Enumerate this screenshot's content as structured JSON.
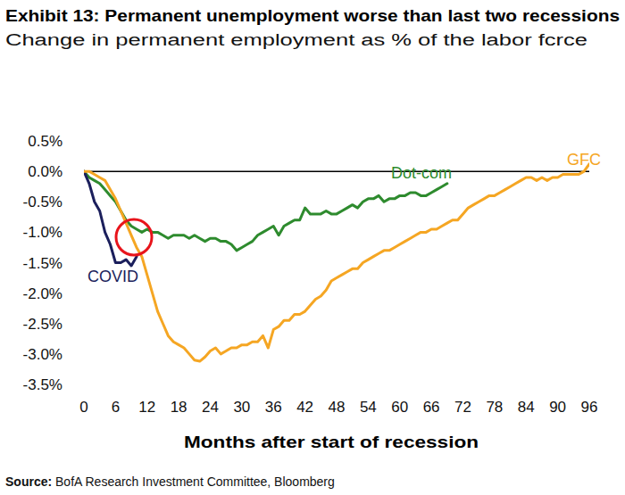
{
  "chart_data": {
    "type": "line",
    "title": "Exhibit 13: Permanent unemployment worse than last two recessions",
    "subtitle": "Change in permanent employment as % of the labor fcrce",
    "x_label": "Months after start of recession",
    "source": "Source: BofA Research Investment Committee, Bloomberg",
    "x": [
      0,
      1,
      2,
      3,
      4,
      5,
      6,
      7,
      8,
      9,
      10,
      11,
      12,
      13,
      14,
      15,
      16,
      17,
      18,
      19,
      20,
      21,
      22,
      23,
      24,
      25,
      26,
      27,
      28,
      29,
      30,
      31,
      32,
      33,
      34,
      35,
      36,
      37,
      38,
      39,
      40,
      41,
      42,
      43,
      44,
      45,
      46,
      47,
      48,
      49,
      50,
      51,
      52,
      53,
      54,
      55,
      56,
      57,
      58,
      59,
      60,
      61,
      62,
      63,
      64,
      65,
      66,
      67,
      68,
      69,
      70,
      71,
      72,
      73,
      74,
      75,
      76,
      77,
      78,
      79,
      80,
      81,
      82,
      83,
      84,
      85,
      86,
      87,
      88,
      89,
      90,
      91,
      92,
      93,
      94,
      95,
      96
    ],
    "series": [
      {
        "name": "Dot-com",
        "color": "#2e8b2e",
        "values": [
          0,
          -0.1,
          -0.15,
          -0.2,
          -0.3,
          -0.4,
          -0.5,
          -0.65,
          -0.8,
          -0.9,
          -0.95,
          -1.0,
          -0.95,
          -1.0,
          -1.0,
          -1.05,
          -1.1,
          -1.05,
          -1.05,
          -1.05,
          -1.1,
          -1.05,
          -1.1,
          -1.15,
          -1.1,
          -1.1,
          -1.15,
          -1.15,
          -1.2,
          -1.3,
          -1.25,
          -1.2,
          -1.15,
          -1.05,
          -1.0,
          -0.95,
          -0.9,
          -1.05,
          -0.9,
          -0.85,
          -0.8,
          -0.8,
          -0.6,
          -0.7,
          -0.7,
          -0.7,
          -0.65,
          -0.7,
          -0.7,
          -0.65,
          -0.6,
          -0.55,
          -0.6,
          -0.5,
          -0.45,
          -0.45,
          -0.4,
          -0.5,
          -0.45,
          -0.45,
          -0.4,
          -0.4,
          -0.35,
          -0.35,
          -0.4,
          -0.4,
          -0.35,
          -0.3,
          -0.25,
          -0.2,
          null,
          null,
          null,
          null,
          null,
          null,
          null,
          null,
          null,
          null,
          null,
          null,
          null,
          null,
          null,
          null,
          null,
          null,
          null,
          null,
          null,
          null,
          null,
          null,
          null,
          null,
          null
        ]
      },
      {
        "name": "COVID",
        "color": "#1b1f5c",
        "values": [
          0,
          -0.2,
          -0.5,
          -0.65,
          -1.0,
          -1.2,
          -1.5,
          -1.5,
          -1.45,
          -1.55,
          -1.4,
          null,
          null,
          null,
          null,
          null,
          null,
          null,
          null,
          null,
          null,
          null,
          null,
          null,
          null,
          null,
          null,
          null,
          null,
          null,
          null,
          null,
          null,
          null,
          null,
          null,
          null,
          null,
          null,
          null,
          null,
          null,
          null,
          null,
          null,
          null,
          null,
          null,
          null,
          null,
          null,
          null,
          null,
          null,
          null,
          null,
          null,
          null,
          null,
          null,
          null,
          null,
          null,
          null,
          null,
          null,
          null,
          null,
          null,
          null,
          null,
          null,
          null,
          null,
          null,
          null,
          null,
          null,
          null,
          null,
          null,
          null,
          null,
          null,
          null,
          null,
          null,
          null,
          null,
          null,
          null,
          null,
          null,
          null,
          null,
          null,
          null
        ]
      },
      {
        "name": "GFC",
        "color": "#f5a623",
        "values": [
          0,
          0,
          -0.05,
          -0.1,
          -0.15,
          -0.3,
          -0.45,
          -0.65,
          -0.85,
          -1.05,
          -1.25,
          -1.4,
          -1.7,
          -2.0,
          -2.3,
          -2.5,
          -2.7,
          -2.8,
          -2.85,
          -2.9,
          -3.0,
          -3.1,
          -3.12,
          -3.05,
          -2.95,
          -2.9,
          -3.0,
          -2.95,
          -2.9,
          -2.9,
          -2.85,
          -2.85,
          -2.8,
          -2.8,
          -2.7,
          -2.9,
          -2.6,
          -2.55,
          -2.45,
          -2.45,
          -2.35,
          -2.35,
          -2.3,
          -2.2,
          -2.1,
          -2.05,
          -1.95,
          -1.8,
          -1.75,
          -1.7,
          -1.65,
          -1.6,
          -1.6,
          -1.5,
          -1.45,
          -1.4,
          -1.35,
          -1.3,
          -1.3,
          -1.25,
          -1.2,
          -1.15,
          -1.1,
          -1.05,
          -1.0,
          -1.0,
          -0.95,
          -0.95,
          -0.9,
          -0.85,
          -0.8,
          -0.8,
          -0.7,
          -0.6,
          -0.55,
          -0.5,
          -0.45,
          -0.4,
          -0.4,
          -0.35,
          -0.3,
          -0.25,
          -0.2,
          -0.15,
          -0.1,
          -0.1,
          -0.15,
          -0.1,
          -0.15,
          -0.1,
          -0.1,
          -0.05,
          -0.05,
          -0.05,
          -0.05,
          0.0,
          0.12
        ]
      }
    ],
    "xlim": [
      0,
      96
    ],
    "xticks": [
      0,
      6,
      12,
      18,
      24,
      30,
      36,
      42,
      48,
      54,
      60,
      66,
      72,
      78,
      84,
      90,
      96
    ],
    "ylim": [
      -3.5,
      0.5
    ],
    "yticks": [
      {
        "value": 0.5,
        "label": "0.5%"
      },
      {
        "value": 0.0,
        "label": "0.0%"
      },
      {
        "value": -0.5,
        "label": "-0.5%"
      },
      {
        "value": -1.0,
        "label": "-1.0%"
      },
      {
        "value": -1.5,
        "label": "-1.5%"
      },
      {
        "value": -2.0,
        "label": "-2.0%"
      },
      {
        "value": -2.5,
        "label": "-2.5%"
      },
      {
        "value": -3.0,
        "label": "-3.0%"
      },
      {
        "value": -3.5,
        "label": "-3.5%"
      }
    ],
    "grid": false
  }
}
